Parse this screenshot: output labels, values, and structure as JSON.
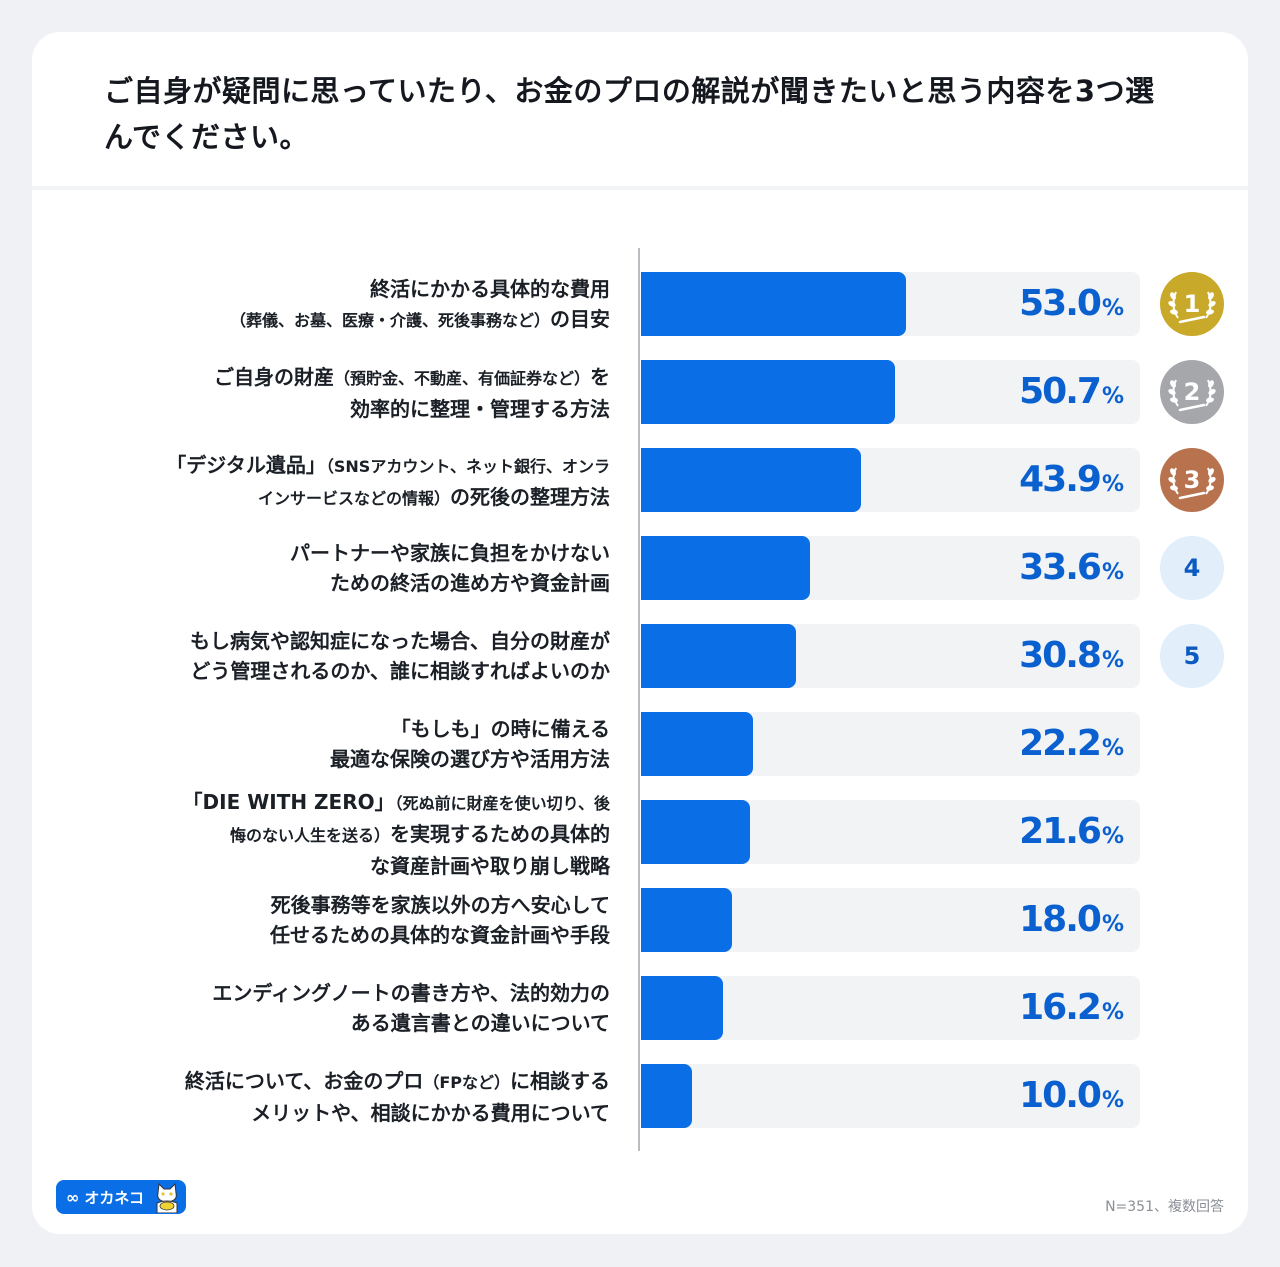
{
  "title": "ご自身が疑問に思っていたり、お金のプロの解説が聞きたいと思う内容を3つ選んでください。",
  "chart_data": {
    "type": "bar",
    "orientation": "horizontal",
    "title": "ご自身が疑問に思っていたり、お金のプロの解説が聞きたいと思う内容を3つ選んでください。",
    "xlabel": "",
    "ylabel": "",
    "xlim": [
      0,
      100
    ],
    "unit": "%",
    "categories": [
      {
        "lines": [
          {
            "main": "終活にかかる具体的な費用"
          },
          {
            "small": "（葬儀、お墓、医療・介護、死後事務など）",
            "main": "の目安"
          }
        ]
      },
      {
        "lines": [
          {
            "main": "ご自身の財産",
            "small": "（預貯金、不動産、有価証券など）",
            "tail": "を"
          },
          {
            "main": "効率的に整理・管理する方法"
          }
        ]
      },
      {
        "lines": [
          {
            "main": "「デジタル遺品」",
            "small": "（SNSアカウント、ネット銀行、オンラ"
          },
          {
            "small": "インサービスなどの情報）",
            "main": "の死後の整理方法"
          }
        ]
      },
      {
        "lines": [
          {
            "main": "パートナーや家族に負担をかけない"
          },
          {
            "main": "ための終活の進め方や資金計画"
          }
        ]
      },
      {
        "lines": [
          {
            "main": "もし病気や認知症になった場合、自分の財産が"
          },
          {
            "main": "どう管理されるのか、誰に相談すればよいのか"
          }
        ]
      },
      {
        "lines": [
          {
            "main": "「もしも」の時に備える"
          },
          {
            "main": "最適な保険の選び方や活用方法"
          }
        ]
      },
      {
        "lines": [
          {
            "main": "「DIE WITH ZERO」",
            "small": "（死ぬ前に財産を使い切り、後"
          },
          {
            "small": "悔のない人生を送る）",
            "main": "を実現するための具体的"
          },
          {
            "main": "な資産計画や取り崩し戦略"
          }
        ]
      },
      {
        "lines": [
          {
            "main": "死後事務等を家族以外の方へ安心して"
          },
          {
            "main": "任せるための具体的な資金計画や手段"
          }
        ]
      },
      {
        "lines": [
          {
            "main": "エンディングノートの書き方や、法的効力の"
          },
          {
            "main": "ある遺言書との違いについて"
          }
        ]
      },
      {
        "lines": [
          {
            "main": "終活について、お金のプロ",
            "small": "（FPなど）",
            "tail": "に相談する"
          },
          {
            "main": "メリットや、相談にかかる費用について"
          }
        ]
      }
    ],
    "values": [
      53.0,
      50.7,
      43.9,
      33.6,
      30.8,
      22.2,
      21.6,
      18.0,
      16.2,
      10.0
    ],
    "value_labels": [
      "53.0",
      "50.7",
      "43.9",
      "33.6",
      "30.8",
      "22.2",
      "21.6",
      "18.0",
      "16.2",
      "10.0"
    ],
    "ranks": [
      "1",
      "2",
      "3",
      "4",
      "5"
    ],
    "rank_styles": [
      "gold",
      "silver",
      "bronze",
      "plain",
      "plain"
    ],
    "percent_sign": "%",
    "grid": false,
    "legend": "none"
  },
  "colors": {
    "bar": "#0a6ee6",
    "track": "#f2f3f5",
    "value_text": "#0b60d0",
    "gold": "#c9a92a",
    "silver": "#a5a7aa",
    "bronze": "#b8734e",
    "plain_badge": "#e3eefb"
  },
  "logo": {
    "text": "オカネコ",
    "icon": "infinity-icon"
  },
  "footnote": "N=351、複数回答"
}
